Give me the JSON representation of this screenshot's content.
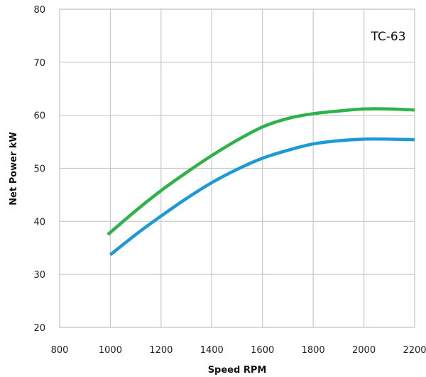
{
  "chart_data": {
    "type": "line",
    "title": "",
    "annotation": "TC-63",
    "xlabel": "Speed RPM",
    "ylabel": "Net Power kW",
    "xlim": [
      800,
      2200
    ],
    "ylim": [
      20,
      80
    ],
    "xticks": [
      800,
      1000,
      1200,
      1400,
      1600,
      1800,
      2000,
      2200
    ],
    "yticks": [
      20,
      30,
      40,
      50,
      60,
      70,
      80
    ],
    "grid": true,
    "legend": "none",
    "series": [
      {
        "color": "#2db34a",
        "x": [
          990,
          1100,
          1200,
          1300,
          1400,
          1500,
          1600,
          1700,
          1800,
          1900,
          2000,
          2100,
          2200
        ],
        "y": [
          37.5,
          42.0,
          45.8,
          49.2,
          52.4,
          55.3,
          57.8,
          59.4,
          60.3,
          60.8,
          61.2,
          61.2,
          61.0
        ]
      },
      {
        "color": "#1a9ad6",
        "x": [
          1000,
          1100,
          1200,
          1300,
          1400,
          1500,
          1600,
          1700,
          1800,
          1900,
          2000,
          2100,
          2200
        ],
        "y": [
          33.7,
          37.5,
          41.0,
          44.3,
          47.3,
          49.8,
          51.9,
          53.4,
          54.6,
          55.2,
          55.5,
          55.5,
          55.4
        ]
      }
    ]
  }
}
